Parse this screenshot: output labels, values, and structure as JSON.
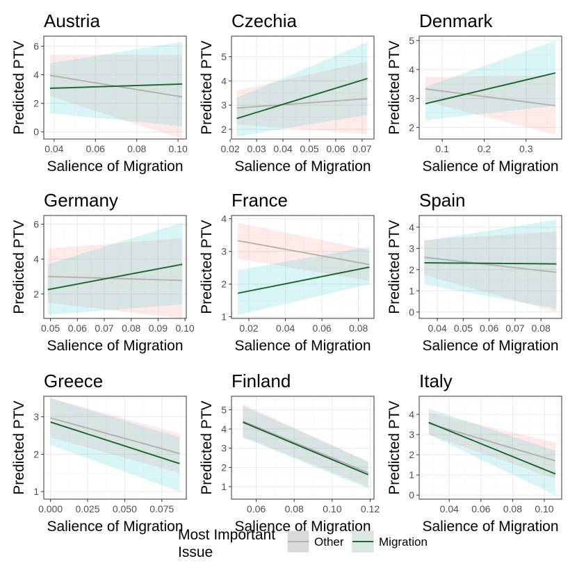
{
  "colors": {
    "other_line": "#b3b3b3",
    "migration_line": "#1f6b2e",
    "other_band": "#f8766d",
    "migration_band": "#00bfc4",
    "grid": "#ebebeb",
    "panel_border": "#333333"
  },
  "legend": {
    "title_line1": "Most Important",
    "title_line2": "Issue",
    "items": [
      {
        "label": "Other",
        "key": "other"
      },
      {
        "label": "Migration",
        "key": "migration"
      }
    ]
  },
  "chart_data": [
    {
      "type": "line",
      "title": "Austria",
      "xlabel": "Salience of  Migration",
      "ylabel": "Predicted PTV",
      "xlim": [
        0.035,
        0.104
      ],
      "ylim": [
        -0.5,
        6.7
      ],
      "xticks": [
        0.04,
        0.06,
        0.08,
        0.1
      ],
      "xticklabels": [
        "0.04",
        "0.06",
        "0.08",
        "0.10"
      ],
      "yticks": [
        0,
        2,
        4,
        6
      ],
      "yticklabels": [
        "0",
        "2",
        "4",
        "6"
      ],
      "x": [
        0.038,
        0.102
      ],
      "series": [
        {
          "name": "Other",
          "key": "other",
          "values": [
            3.95,
            2.45
          ],
          "lower": [
            2.5,
            -0.5
          ],
          "upper": [
            5.4,
            5.4
          ]
        },
        {
          "name": "Migration",
          "key": "migration",
          "values": [
            3.05,
            3.35
          ],
          "lower": [
            1.3,
            0.4
          ],
          "upper": [
            4.8,
            6.3
          ]
        }
      ]
    },
    {
      "type": "line",
      "title": "Czechia",
      "xlabel": "Salience of  Migration",
      "ylabel": "Predicted PTV",
      "xlim": [
        0.0205,
        0.0745
      ],
      "ylim": [
        1.6,
        5.85
      ],
      "xticks": [
        0.02,
        0.03,
        0.04,
        0.05,
        0.06,
        0.07
      ],
      "xticklabels": [
        "0.02",
        "0.03",
        "0.04",
        "0.05",
        "0.06",
        "0.07"
      ],
      "yticks": [
        2,
        3,
        4,
        5
      ],
      "yticklabels": [
        "2",
        "3",
        "4",
        "5"
      ],
      "x": [
        0.0225,
        0.072
      ],
      "series": [
        {
          "name": "Other",
          "key": "other",
          "values": [
            2.88,
            3.27
          ],
          "lower": [
            2.2,
            1.8
          ],
          "upper": [
            3.6,
            4.8
          ]
        },
        {
          "name": "Migration",
          "key": "migration",
          "values": [
            2.45,
            4.1
          ],
          "lower": [
            1.7,
            2.6
          ],
          "upper": [
            3.3,
            5.6
          ]
        }
      ]
    },
    {
      "type": "line",
      "title": "Denmark",
      "xlabel": "Salience of  Migration",
      "ylabel": "Predicted PTV",
      "xlim": [
        0.045,
        0.385
      ],
      "ylim": [
        1.6,
        5.15
      ],
      "xticks": [
        0.1,
        0.2,
        0.3
      ],
      "xticklabels": [
        "0.1",
        "0.2",
        "0.3"
      ],
      "yticks": [
        2,
        3,
        4,
        5
      ],
      "yticklabels": [
        "2",
        "3",
        "4",
        "5"
      ],
      "x": [
        0.06,
        0.37
      ],
      "series": [
        {
          "name": "Other",
          "key": "other",
          "values": [
            3.33,
            2.75
          ],
          "lower": [
            2.9,
            1.75
          ],
          "upper": [
            3.75,
            3.8
          ]
        },
        {
          "name": "Migration",
          "key": "migration",
          "values": [
            2.82,
            3.88
          ],
          "lower": [
            2.25,
            2.75
          ],
          "upper": [
            3.4,
            5.0
          ]
        }
      ]
    },
    {
      "type": "line",
      "title": "Germany",
      "xlabel": "Salience of  Migration",
      "ylabel": "Predicted PTV",
      "xlim": [
        0.0475,
        0.1005
      ],
      "ylim": [
        0.6,
        6.5
      ],
      "xticks": [
        0.05,
        0.06,
        0.07,
        0.08,
        0.09,
        0.1
      ],
      "xticklabels": [
        "0.05",
        "0.06",
        "0.07",
        "0.08",
        "0.09",
        "0.10"
      ],
      "yticks": [
        2,
        4,
        6
      ],
      "yticklabels": [
        "2",
        "4",
        "6"
      ],
      "x": [
        0.049,
        0.099
      ],
      "series": [
        {
          "name": "Other",
          "key": "other",
          "values": [
            3.0,
            2.78
          ],
          "lower": [
            1.5,
            0.6
          ],
          "upper": [
            4.6,
            5.2
          ]
        },
        {
          "name": "Migration",
          "key": "migration",
          "values": [
            2.25,
            3.7
          ],
          "lower": [
            0.8,
            1.4
          ],
          "upper": [
            3.7,
            6.1
          ]
        }
      ]
    },
    {
      "type": "line",
      "title": "France",
      "xlabel": "Salience of  Migration",
      "ylabel": "Predicted PTV",
      "xlim": [
        0.0105,
        0.0885
      ],
      "ylim": [
        0.95,
        4.1
      ],
      "xticks": [
        0.02,
        0.04,
        0.06,
        0.08
      ],
      "xticklabels": [
        "0.02",
        "0.04",
        "0.06",
        "0.08"
      ],
      "yticks": [
        1,
        2,
        3,
        4
      ],
      "yticklabels": [
        "1",
        "2",
        "3",
        "4"
      ],
      "x": [
        0.014,
        0.086
      ],
      "series": [
        {
          "name": "Other",
          "key": "other",
          "values": [
            3.33,
            2.6
          ],
          "lower": [
            2.78,
            2.1
          ],
          "upper": [
            3.88,
            3.05
          ]
        },
        {
          "name": "Migration",
          "key": "migration",
          "values": [
            1.72,
            2.52
          ],
          "lower": [
            1.05,
            2.0
          ],
          "upper": [
            2.42,
            3.15
          ]
        }
      ]
    },
    {
      "type": "line",
      "title": "Spain",
      "xlabel": "Salience of  Migration",
      "ylabel": "Predicted PTV",
      "xlim": [
        0.033,
        0.088
      ],
      "ylim": [
        -0.3,
        4.55
      ],
      "xticks": [
        0.04,
        0.05,
        0.06,
        0.07,
        0.08
      ],
      "xticklabels": [
        "0.04",
        "0.05",
        "0.06",
        "0.07",
        "0.08"
      ],
      "yticks": [
        0,
        1,
        2,
        3,
        4
      ],
      "yticklabels": [
        "0",
        "1",
        "2",
        "3",
        "4"
      ],
      "x": [
        0.035,
        0.086
      ],
      "series": [
        {
          "name": "Other",
          "key": "other",
          "values": [
            2.58,
            1.87
          ],
          "lower": [
            1.75,
            0.0
          ],
          "upper": [
            3.4,
            3.8
          ]
        },
        {
          "name": "Migration",
          "key": "migration",
          "values": [
            2.32,
            2.27
          ],
          "lower": [
            1.3,
            0.15
          ],
          "upper": [
            3.35,
            4.35
          ]
        }
      ]
    },
    {
      "type": "line",
      "title": "Greece",
      "xlabel": "Salience of  Migration",
      "ylabel": "Predicted PTV",
      "xlim": [
        -0.0045,
        0.0915
      ],
      "ylim": [
        0.8,
        3.55
      ],
      "xticks": [
        0.0,
        0.025,
        0.05,
        0.075
      ],
      "xticklabels": [
        "0.000",
        "0.025",
        "0.050",
        "0.075"
      ],
      "yticks": [
        1,
        2,
        3
      ],
      "yticklabels": [
        "1",
        "2",
        "3"
      ],
      "x": [
        0.0,
        0.087
      ],
      "series": [
        {
          "name": "Other",
          "key": "other",
          "values": [
            2.97,
            2.02
          ],
          "lower": [
            2.45,
            1.5
          ],
          "upper": [
            3.5,
            2.55
          ]
        },
        {
          "name": "Migration",
          "key": "migration",
          "values": [
            2.86,
            1.75
          ],
          "lower": [
            2.25,
            1.0
          ],
          "upper": [
            3.5,
            2.45
          ]
        }
      ]
    },
    {
      "type": "line",
      "title": "Finland",
      "xlabel": "Salience of  Migration",
      "ylabel": "Predicted PTV",
      "xlim": [
        0.047,
        0.122
      ],
      "ylim": [
        0.35,
        5.7
      ],
      "xticks": [
        0.06,
        0.08,
        0.1,
        0.12
      ],
      "xticklabels": [
        "0.06",
        "0.08",
        "0.10",
        "0.12"
      ],
      "yticks": [
        1,
        2,
        3,
        4,
        5
      ],
      "yticklabels": [
        "1",
        "2",
        "3",
        "4",
        "5"
      ],
      "x": [
        0.053,
        0.119
      ],
      "series": [
        {
          "name": "Other",
          "key": "other",
          "values": [
            4.4,
            1.72
          ],
          "lower": [
            3.6,
            1.0
          ],
          "upper": [
            5.3,
            2.3
          ]
        },
        {
          "name": "Migration",
          "key": "migration",
          "values": [
            4.35,
            1.62
          ],
          "lower": [
            3.55,
            0.9
          ],
          "upper": [
            5.2,
            2.3
          ]
        }
      ]
    },
    {
      "type": "line",
      "title": "Italy",
      "xlabel": "Salience of  Migration",
      "ylabel": "Predicted PTV",
      "xlim": [
        0.021,
        0.111
      ],
      "ylim": [
        -0.2,
        4.9
      ],
      "xticks": [
        0.04,
        0.06,
        0.08,
        0.1
      ],
      "xticklabels": [
        "0.04",
        "0.06",
        "0.08",
        "0.10"
      ],
      "yticks": [
        0,
        1,
        2,
        3,
        4
      ],
      "yticklabels": [
        "0",
        "1",
        "2",
        "3",
        "4"
      ],
      "x": [
        0.027,
        0.107
      ],
      "series": [
        {
          "name": "Other",
          "key": "other",
          "values": [
            3.55,
            1.7
          ],
          "lower": [
            3.0,
            0.8
          ],
          "upper": [
            4.1,
            2.6
          ]
        },
        {
          "name": "Migration",
          "key": "migration",
          "values": [
            3.6,
            1.05
          ],
          "lower": [
            3.0,
            0.0
          ],
          "upper": [
            4.3,
            2.2
          ]
        }
      ]
    }
  ]
}
